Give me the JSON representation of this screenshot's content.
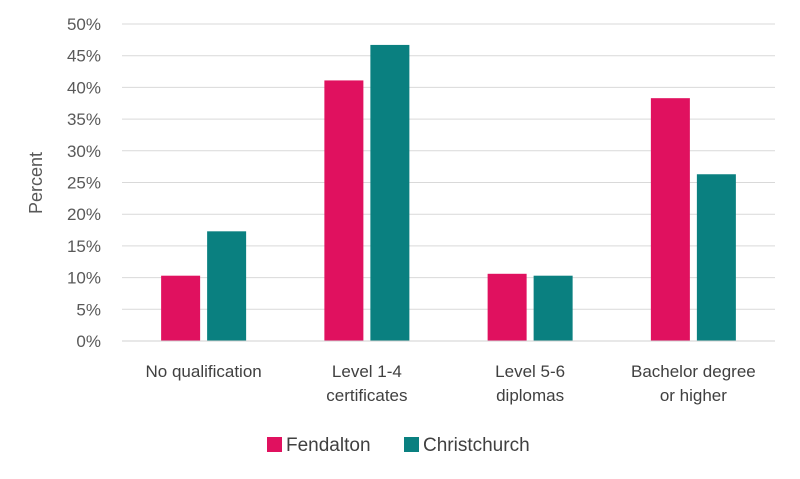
{
  "chart_data": {
    "type": "bar",
    "ylabel": "Percent",
    "xlabel": "",
    "ylim": [
      0,
      50
    ],
    "ytick_step": 5,
    "ytick_labels": [
      "0%",
      "5%",
      "10%",
      "15%",
      "20%",
      "25%",
      "30%",
      "35%",
      "40%",
      "45%",
      "50%"
    ],
    "grid": true,
    "legend_position": "bottom",
    "categories": [
      [
        "No qualification"
      ],
      [
        "Level 1-4",
        "certificates"
      ],
      [
        "Level 5-6",
        "diplomas"
      ],
      [
        "Bachelor degree",
        "or higher"
      ]
    ],
    "series": [
      {
        "name": "Fendalton",
        "color": "#E0115F",
        "values": [
          10.3,
          41.1,
          10.6,
          38.3
        ]
      },
      {
        "name": "Christchurch",
        "color": "#0A8080",
        "values": [
          17.3,
          46.7,
          10.3,
          26.3
        ]
      }
    ]
  }
}
